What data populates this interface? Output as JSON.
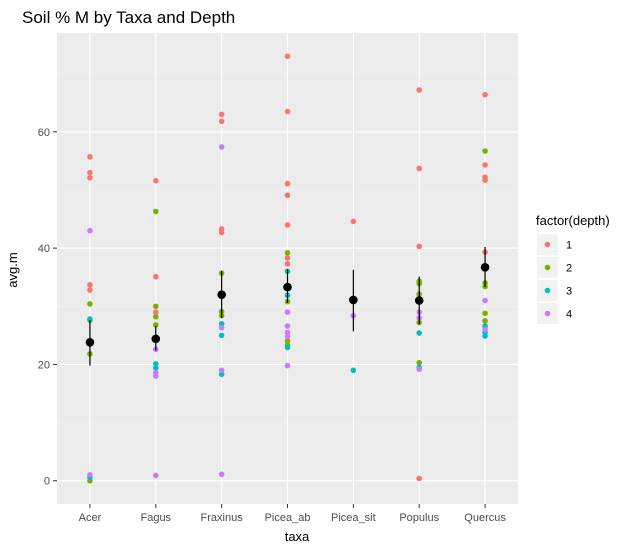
{
  "chart_data": {
    "type": "scatter",
    "title": "Soil % M by Taxa and Depth",
    "xlabel": "taxa",
    "ylabel": "avg.m",
    "categories": [
      "Acer",
      "Fagus",
      "Fraxinus",
      "Picea_ab",
      "Picea_sit",
      "Populus",
      "Quercus"
    ],
    "yticks": [
      0,
      20,
      40,
      60
    ],
    "ylim": [
      -4,
      77
    ],
    "grid": true,
    "legend": {
      "title": "factor(depth)",
      "placement": "right",
      "entries": [
        {
          "label": "1",
          "color": "#F8766D"
        },
        {
          "label": "2",
          "color": "#7CAE00"
        },
        {
          "label": "3",
          "color": "#00BFC4"
        },
        {
          "label": "4",
          "color": "#C77CFF"
        }
      ]
    },
    "series": [
      {
        "depth": "1",
        "color": "#F8766D",
        "points": [
          [
            "Acer",
            55.7
          ],
          [
            "Acer",
            53.0
          ],
          [
            "Acer",
            52.1
          ],
          [
            "Acer",
            33.7
          ],
          [
            "Acer",
            32.8
          ],
          [
            "Fagus",
            51.6
          ],
          [
            "Fagus",
            35.1
          ],
          [
            "Fagus",
            29.0
          ],
          [
            "Fraxinus",
            63.0
          ],
          [
            "Fraxinus",
            61.8
          ],
          [
            "Fraxinus",
            43.3
          ],
          [
            "Fraxinus",
            42.7
          ],
          [
            "Picea_ab",
            73.0
          ],
          [
            "Picea_ab",
            63.5
          ],
          [
            "Picea_ab",
            51.1
          ],
          [
            "Picea_ab",
            49.1
          ],
          [
            "Picea_ab",
            44.0
          ],
          [
            "Picea_ab",
            38.3
          ],
          [
            "Picea_ab",
            37.3
          ],
          [
            "Picea_sit",
            44.6
          ],
          [
            "Populus",
            67.2
          ],
          [
            "Populus",
            53.7
          ],
          [
            "Populus",
            40.3
          ],
          [
            "Populus",
            0.4
          ],
          [
            "Quercus",
            66.4
          ],
          [
            "Quercus",
            54.3
          ],
          [
            "Quercus",
            52.2
          ],
          [
            "Quercus",
            51.7
          ],
          [
            "Quercus",
            39.3
          ]
        ]
      },
      {
        "depth": "2",
        "color": "#7CAE00",
        "points": [
          [
            "Acer",
            30.4
          ],
          [
            "Acer",
            27.6
          ],
          [
            "Acer",
            21.8
          ],
          [
            "Acer",
            0.0
          ],
          [
            "Fagus",
            46.3
          ],
          [
            "Fagus",
            30.0
          ],
          [
            "Fagus",
            28.2
          ],
          [
            "Fagus",
            26.8
          ],
          [
            "Fraxinus",
            35.7
          ],
          [
            "Fraxinus",
            29.1
          ],
          [
            "Fraxinus",
            28.4
          ],
          [
            "Picea_ab",
            39.2
          ],
          [
            "Picea_ab",
            30.8
          ],
          [
            "Picea_ab",
            24.0
          ],
          [
            "Picea_ab",
            23.3
          ],
          [
            "Picea_sit",
            31.4
          ],
          [
            "Populus",
            34.3
          ],
          [
            "Populus",
            33.9
          ],
          [
            "Populus",
            32.1
          ],
          [
            "Populus",
            27.2
          ],
          [
            "Populus",
            20.3
          ],
          [
            "Quercus",
            56.7
          ],
          [
            "Quercus",
            34.0
          ],
          [
            "Quercus",
            33.4
          ],
          [
            "Quercus",
            28.8
          ],
          [
            "Quercus",
            27.5
          ]
        ]
      },
      {
        "depth": "3",
        "color": "#00BFC4",
        "points": [
          [
            "Acer",
            27.8
          ],
          [
            "Acer",
            0.6
          ],
          [
            "Fagus",
            20.1
          ],
          [
            "Fagus",
            19.4
          ],
          [
            "Fraxinus",
            27.0
          ],
          [
            "Fraxinus",
            25.0
          ],
          [
            "Fraxinus",
            18.3
          ],
          [
            "Picea_ab",
            36.0
          ],
          [
            "Picea_ab",
            31.9
          ],
          [
            "Picea_ab",
            22.9
          ],
          [
            "Picea_sit",
            19.0
          ],
          [
            "Populus",
            31.0
          ],
          [
            "Populus",
            25.4
          ],
          [
            "Populus",
            19.5
          ],
          [
            "Quercus",
            26.6
          ],
          [
            "Quercus",
            25.5
          ],
          [
            "Quercus",
            24.9
          ]
        ]
      },
      {
        "depth": "4",
        "color": "#C77CFF",
        "points": [
          [
            "Acer",
            43.0
          ],
          [
            "Acer",
            1.0
          ],
          [
            "Fagus",
            22.6
          ],
          [
            "Fagus",
            18.6
          ],
          [
            "Fagus",
            18.0
          ],
          [
            "Fagus",
            0.9
          ],
          [
            "Fraxinus",
            57.4
          ],
          [
            "Fraxinus",
            26.3
          ],
          [
            "Fraxinus",
            19.0
          ],
          [
            "Fraxinus",
            1.1
          ],
          [
            "Picea_ab",
            29.0
          ],
          [
            "Picea_ab",
            26.6
          ],
          [
            "Picea_ab",
            25.5
          ],
          [
            "Picea_ab",
            24.8
          ],
          [
            "Picea_ab",
            19.8
          ],
          [
            "Picea_sit",
            28.4
          ],
          [
            "Populus",
            29.0
          ],
          [
            "Populus",
            28.0
          ],
          [
            "Populus",
            19.2
          ],
          [
            "Quercus",
            31.0
          ],
          [
            "Quercus",
            26.0
          ]
        ]
      }
    ],
    "summary": {
      "color": "#000000",
      "points": [
        {
          "taxa": "Acer",
          "mean": 23.8,
          "low": 19.8,
          "high": 27.6
        },
        {
          "taxa": "Fagus",
          "mean": 24.4,
          "low": 22.4,
          "high": 26.6
        },
        {
          "taxa": "Fraxinus",
          "mean": 32.0,
          "low": 28.0,
          "high": 36.1
        },
        {
          "taxa": "Picea_ab",
          "mean": 33.3,
          "low": 30.6,
          "high": 36.4
        },
        {
          "taxa": "Picea_sit",
          "mean": 31.1,
          "low": 25.7,
          "high": 36.3
        },
        {
          "taxa": "Populus",
          "mean": 31.0,
          "low": 26.9,
          "high": 35.1
        },
        {
          "taxa": "Quercus",
          "mean": 36.7,
          "low": 33.3,
          "high": 40.2
        }
      ]
    }
  }
}
